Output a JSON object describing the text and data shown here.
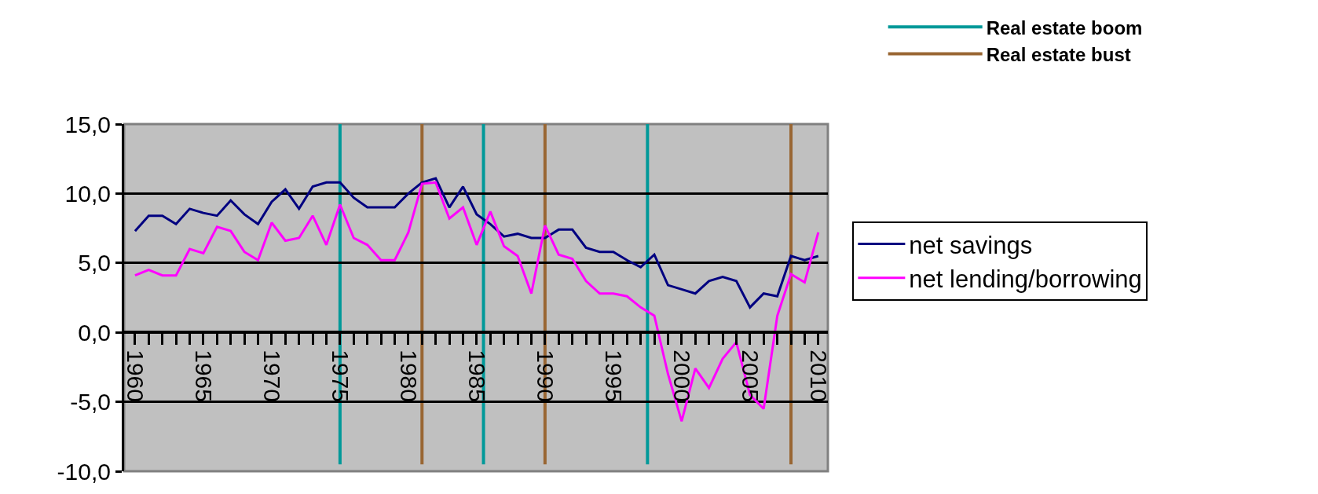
{
  "chart_data": {
    "type": "line",
    "x": [
      1960,
      1961,
      1962,
      1963,
      1964,
      1965,
      1966,
      1967,
      1968,
      1969,
      1970,
      1971,
      1972,
      1973,
      1974,
      1975,
      1976,
      1977,
      1978,
      1979,
      1980,
      1981,
      1982,
      1983,
      1984,
      1985,
      1986,
      1987,
      1988,
      1989,
      1990,
      1991,
      1992,
      1993,
      1994,
      1995,
      1996,
      1997,
      1998,
      1999,
      2000,
      2001,
      2002,
      2003,
      2004,
      2005,
      2006,
      2007,
      2008,
      2009,
      2010
    ],
    "series": [
      {
        "name": "net savings",
        "color": "#000080",
        "values": [
          7.3,
          8.4,
          8.4,
          7.8,
          8.9,
          8.6,
          8.4,
          9.5,
          8.5,
          7.8,
          9.4,
          10.3,
          8.9,
          10.5,
          10.8,
          10.8,
          9.7,
          9.0,
          9.0,
          9.0,
          10.0,
          10.8,
          11.1,
          9.0,
          10.5,
          8.5,
          7.8,
          6.9,
          7.1,
          6.8,
          6.8,
          7.4,
          7.4,
          6.1,
          5.8,
          5.8,
          5.2,
          4.7,
          5.6,
          3.4,
          3.1,
          2.8,
          3.7,
          4.0,
          3.7,
          1.8,
          2.8,
          2.6,
          5.5,
          5.2,
          5.5
        ]
      },
      {
        "name": "net lending/borrowing",
        "color": "#ff00ff",
        "values": [
          4.1,
          4.5,
          4.1,
          4.1,
          6.0,
          5.7,
          7.6,
          7.3,
          5.8,
          5.2,
          7.9,
          6.6,
          6.8,
          8.4,
          6.3,
          9.2,
          6.8,
          6.3,
          5.2,
          5.2,
          7.2,
          10.7,
          10.8,
          8.2,
          9.0,
          6.3,
          8.7,
          6.2,
          5.5,
          2.8,
          7.7,
          5.6,
          5.3,
          3.7,
          2.8,
          2.8,
          2.6,
          1.8,
          1.2,
          -3.0,
          -6.4,
          -2.6,
          -4.0,
          -1.9,
          -0.7,
          -4.5,
          -5.5,
          1.2,
          4.2,
          3.6,
          7.2
        ]
      }
    ],
    "ref_lines": [
      {
        "axis": "x",
        "value": 1975,
        "label": "Real estate boom",
        "color": "#009999"
      },
      {
        "axis": "x",
        "value": 1981,
        "label": "Real estate bust",
        "color": "#996633"
      },
      {
        "axis": "x",
        "value": 1985.5,
        "color": "#009999"
      },
      {
        "axis": "x",
        "value": 1990,
        "color": "#996633"
      },
      {
        "axis": "x",
        "value": 1997.5,
        "color": "#009999"
      },
      {
        "axis": "x",
        "value": 2008,
        "color": "#996633"
      }
    ],
    "xlim": [
      1959.2,
      2010.7
    ],
    "xticks": [
      1960,
      1965,
      1970,
      1975,
      1980,
      1985,
      1990,
      1995,
      2000,
      2005,
      2010
    ],
    "ylim": [
      -10,
      15
    ],
    "yticks": [
      {
        "value": -10,
        "label": "-10,0"
      },
      {
        "value": -5,
        "label": "-5,0"
      },
      {
        "value": 0,
        "label": "0,0"
      },
      {
        "value": 5,
        "label": "5,0"
      },
      {
        "value": 10,
        "label": "10,0"
      },
      {
        "value": 15,
        "label": "15,0"
      }
    ],
    "grid": "y",
    "legend": "right",
    "marker": "none",
    "line_style": "solid"
  }
}
